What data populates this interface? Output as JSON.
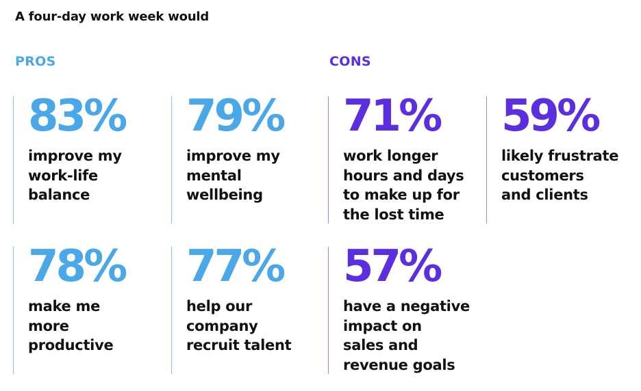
{
  "title": "A four-day work week would",
  "pros_label": "PROS",
  "cons_label": "CONS",
  "colors": {
    "pros": "#4aa8e8",
    "cons": "#5b2ee0",
    "text": "#111111"
  },
  "chart_data": {
    "type": "table",
    "title": "A four-day work week would",
    "groups": [
      {
        "name": "PROS",
        "items": [
          {
            "value": 83,
            "label": "83%",
            "text": "improve my\nwork-life\nbalance"
          },
          {
            "value": 79,
            "label": "79%",
            "text": "improve my\nmental\nwellbeing"
          },
          {
            "value": 78,
            "label": "78%",
            "text": "make me\nmore\nproductive"
          },
          {
            "value": 77,
            "label": "77%",
            "text": "help our\ncompany\nrecruit talent"
          }
        ]
      },
      {
        "name": "CONS",
        "items": [
          {
            "value": 71,
            "label": "71%",
            "text": "work longer\nhours and days\nto make up for\nthe lost time"
          },
          {
            "value": 59,
            "label": "59%",
            "text": "likely frustrate\ncustomers\nand clients"
          },
          {
            "value": 57,
            "label": "57%",
            "text": "have a negative\nimpact on\nsales and\nrevenue goals"
          }
        ]
      }
    ]
  }
}
